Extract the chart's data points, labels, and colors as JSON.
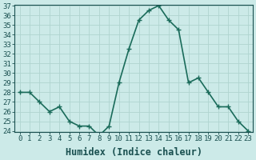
{
  "x": [
    0,
    1,
    2,
    3,
    4,
    5,
    6,
    7,
    8,
    9,
    10,
    11,
    12,
    13,
    14,
    15,
    16,
    17,
    18,
    19,
    20,
    21,
    22,
    23
  ],
  "y": [
    28,
    28,
    27,
    26,
    26.5,
    25,
    24.5,
    24.5,
    23.5,
    24.5,
    29,
    32.5,
    35.5,
    36.5,
    37,
    35.5,
    34.5,
    29,
    29.5,
    28,
    26.5,
    26.5,
    25,
    24
  ],
  "line_color": "#1a6b5a",
  "marker": "+",
  "marker_size": 4,
  "bg_color": "#cceae8",
  "grid_color": "#b0d4d0",
  "xlabel": "Humidex (Indice chaleur)",
  "ylim": [
    24,
    37
  ],
  "xlim": [
    -0.5,
    23.5
  ],
  "yticks": [
    24,
    25,
    26,
    27,
    28,
    29,
    30,
    31,
    32,
    33,
    34,
    35,
    36,
    37
  ],
  "xticks": [
    0,
    1,
    2,
    3,
    4,
    5,
    6,
    7,
    8,
    9,
    10,
    11,
    12,
    13,
    14,
    15,
    16,
    17,
    18,
    19,
    20,
    21,
    22,
    23
  ],
  "tick_label_fontsize": 6.5,
  "xlabel_fontsize": 8.5,
  "linewidth": 1.2,
  "text_color": "#1a5050"
}
